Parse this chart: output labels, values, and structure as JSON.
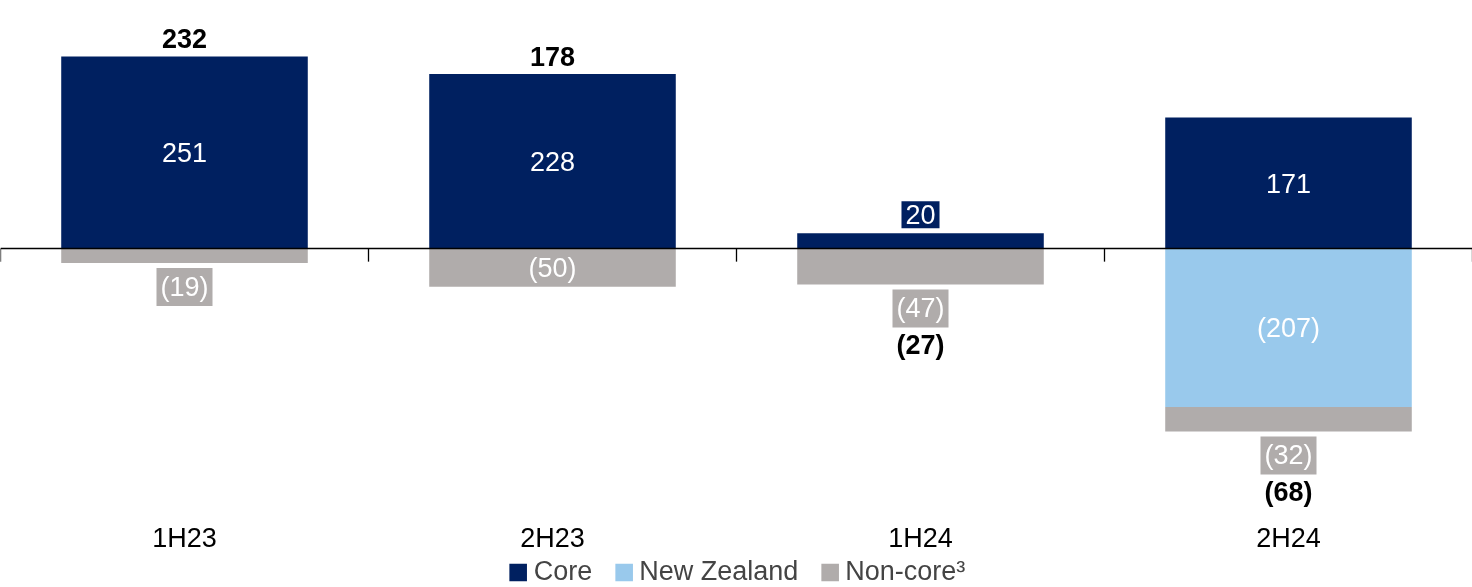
{
  "chart_data": {
    "type": "bar",
    "stacked": true,
    "categories": [
      "1H23",
      "2H23",
      "1H24",
      "2H24"
    ],
    "series": [
      {
        "name": "Core",
        "color": "#002060",
        "values": [
          251,
          228,
          20,
          171
        ],
        "value_labels": [
          "251",
          "228",
          "20",
          "171"
        ]
      },
      {
        "name": "New Zealand",
        "color": "#99c9ec",
        "values": [
          null,
          null,
          null,
          -207
        ],
        "value_labels": [
          null,
          null,
          null,
          "(207)"
        ]
      },
      {
        "name": "Non-core³",
        "color": "#b0acab",
        "values": [
          -19,
          -50,
          -47,
          -32
        ],
        "value_labels": [
          "(19)",
          "(50)",
          "(47)",
          "(32)"
        ]
      }
    ],
    "totals": [
      "232",
      "178",
      "(27)",
      "(68)"
    ],
    "legend": "bottom",
    "grid": false
  }
}
